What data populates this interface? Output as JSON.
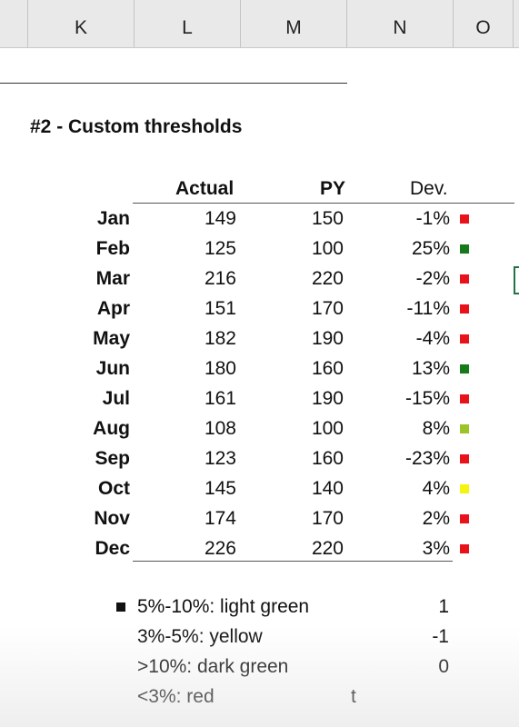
{
  "columns": [
    "K",
    "L",
    "M",
    "N",
    "O"
  ],
  "section_title": "#2 - Custom thresholds",
  "table": {
    "headers": {
      "actual": "Actual",
      "py": "PY",
      "dev": "Dev."
    },
    "rows": [
      {
        "month": "Jan",
        "actual": "149",
        "py": "150",
        "dev": "-1%",
        "status": "red"
      },
      {
        "month": "Feb",
        "actual": "125",
        "py": "100",
        "dev": "25%",
        "status": "dark-green"
      },
      {
        "month": "Mar",
        "actual": "216",
        "py": "220",
        "dev": "-2%",
        "status": "red"
      },
      {
        "month": "Apr",
        "actual": "151",
        "py": "170",
        "dev": "-11%",
        "status": "red"
      },
      {
        "month": "May",
        "actual": "182",
        "py": "190",
        "dev": "-4%",
        "status": "red"
      },
      {
        "month": "Jun",
        "actual": "180",
        "py": "160",
        "dev": "13%",
        "status": "dark-green"
      },
      {
        "month": "Jul",
        "actual": "161",
        "py": "190",
        "dev": "-15%",
        "status": "red"
      },
      {
        "month": "Aug",
        "actual": "108",
        "py": "100",
        "dev": "8%",
        "status": "light-green"
      },
      {
        "month": "Sep",
        "actual": "123",
        "py": "160",
        "dev": "-23%",
        "status": "red"
      },
      {
        "month": "Oct",
        "actual": "145",
        "py": "140",
        "dev": "4%",
        "status": "yellow"
      },
      {
        "month": "Nov",
        "actual": "174",
        "py": "170",
        "dev": "2%",
        "status": "red"
      },
      {
        "month": "Dec",
        "actual": "226",
        "py": "220",
        "dev": "3%",
        "status": "red"
      }
    ]
  },
  "legend": [
    {
      "text": "5%-10%: light green",
      "value": "1",
      "bullet": true
    },
    {
      "text": "3%-5%: yellow",
      "value": "-1",
      "bullet": false
    },
    {
      "text": ">10%: dark green",
      "value": "0",
      "bullet": false
    },
    {
      "text": "<3%: red",
      "value": "",
      "bullet": false,
      "stray": "t"
    }
  ],
  "colors": {
    "red": "#e8121b",
    "dark-green": "#16791a",
    "light-green": "#9cc428",
    "yellow": "#f4f40f",
    "excel-green": "#217346"
  },
  "icons": {
    "selection": "cell-selection-border"
  }
}
